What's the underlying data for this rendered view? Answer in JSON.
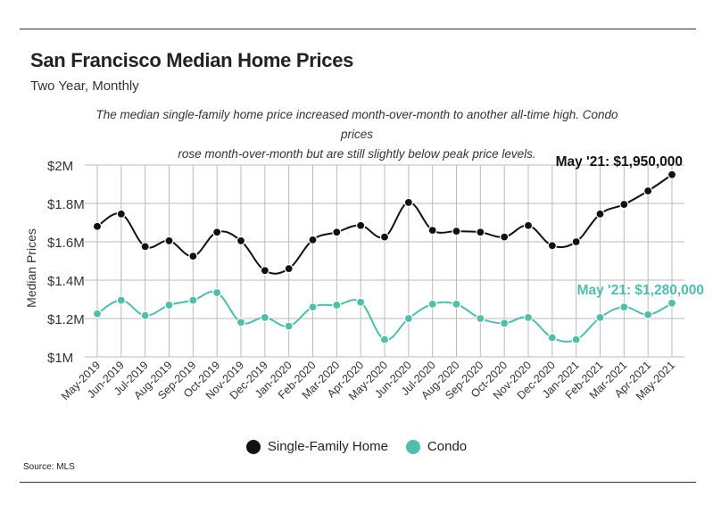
{
  "header": {
    "title": "San Francisco Median Home Prices",
    "subtitle": "Two Year, Monthly",
    "description_line1": "The median single-family home price increased month-over-month to another all-time high. Condo prices",
    "description_line2": "rose month-over-month but are still slightly below peak price levels."
  },
  "footer": {
    "source": "Source:  MLS"
  },
  "legend": [
    {
      "label": "Single-Family Home",
      "color": "#111111"
    },
    {
      "label": "Condo",
      "color": "#4dbfaa"
    }
  ],
  "colors": {
    "sfh": "#111111",
    "condo": "#4dbfaa",
    "grid": "#bbbbbb"
  },
  "chart_data": {
    "type": "line",
    "ylabel": "Median Prices",
    "ylim": [
      1000000,
      2000000
    ],
    "y_ticks": [
      {
        "value": 1000000,
        "label": "$1M"
      },
      {
        "value": 1200000,
        "label": "$1.2M"
      },
      {
        "value": 1400000,
        "label": "$1.4M"
      },
      {
        "value": 1600000,
        "label": "$1.6M"
      },
      {
        "value": 1800000,
        "label": "$1.8M"
      },
      {
        "value": 2000000,
        "label": "$2M"
      }
    ],
    "grid": true,
    "legend_position": "bottom",
    "categories": [
      "May-2019",
      "Jun-2019",
      "Jul-2019",
      "Aug-2019",
      "Sep-2019",
      "Oct-2019",
      "Nov-2019",
      "Dec-2019",
      "Jan-2020",
      "Feb-2020",
      "Mar-2020",
      "Apr-2020",
      "May-2020",
      "Jun-2020",
      "Jul-2020",
      "Aug-2020",
      "Sep-2020",
      "Oct-2020",
      "Nov-2020",
      "Dec-2020",
      "Jan-2021",
      "Feb-2021",
      "Mar-2021",
      "Apr-2021",
      "May-2021"
    ],
    "series": [
      {
        "name": "Single-Family Home",
        "values": [
          1680000,
          1745000,
          1575000,
          1605000,
          1525000,
          1650000,
          1605000,
          1450000,
          1460000,
          1610000,
          1650000,
          1685000,
          1625000,
          1805000,
          1660000,
          1655000,
          1650000,
          1625000,
          1685000,
          1580000,
          1600000,
          1745000,
          1795000,
          1865000,
          1950000
        ]
      },
      {
        "name": "Condo",
        "values": [
          1225000,
          1295000,
          1215000,
          1270000,
          1295000,
          1335000,
          1180000,
          1205000,
          1160000,
          1260000,
          1270000,
          1285000,
          1090000,
          1200000,
          1275000,
          1275000,
          1200000,
          1175000,
          1205000,
          1100000,
          1090000,
          1205000,
          1260000,
          1220000,
          1280000
        ]
      }
    ],
    "annotations": [
      {
        "series": 0,
        "text": "May '21: $1,950,000"
      },
      {
        "series": 1,
        "text": "May '21: $1,280,000"
      }
    ]
  }
}
